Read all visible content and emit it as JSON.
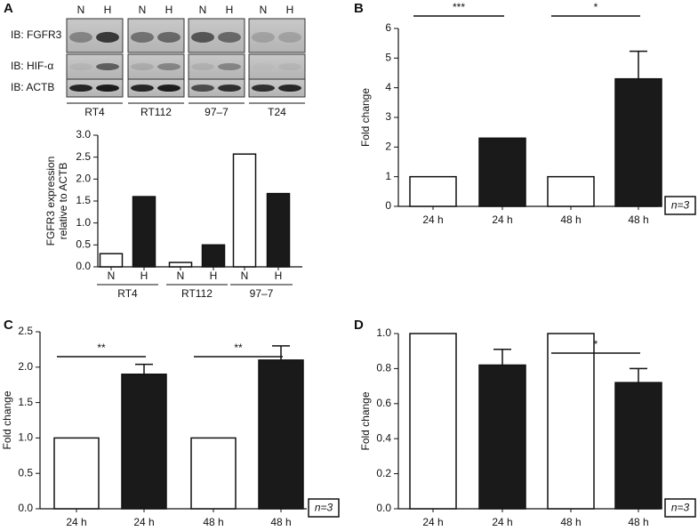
{
  "blot": {
    "panel": "A",
    "lanes": [
      "N",
      "H"
    ],
    "rows": [
      "IB: FGFR3",
      "IB: HIF-α",
      "IB: ACTB"
    ],
    "cell_lines": [
      "RT4",
      "RT112",
      "97–7",
      "T24"
    ]
  },
  "chart_data": [
    {
      "type": "bar",
      "categories": [
        "N",
        "H",
        "N",
        "H",
        "N",
        "H"
      ],
      "groups": [
        "RT4",
        "RT112",
        "97–7"
      ],
      "values": [
        0.3,
        1.6,
        0.1,
        0.5,
        2.57,
        1.67
      ],
      "colors": [
        "#ffffff",
        "#1a1a1a",
        "#ffffff",
        "#1a1a1a",
        "#ffffff",
        "#1a1a1a"
      ],
      "ylabel": [
        "FGFR3 expression",
        "relative to ACTB"
      ],
      "ylim": [
        0,
        3
      ],
      "yticks": [
        {
          "value": 0,
          "label": "0.0"
        },
        {
          "value": 0.5,
          "label": "0.5"
        },
        {
          "value": 1,
          "label": "1.0"
        },
        {
          "value": 1.5,
          "label": "1.5"
        },
        {
          "value": 2,
          "label": "2.0"
        },
        {
          "value": 2.5,
          "label": "2.5"
        },
        {
          "value": 3,
          "label": "3.0"
        }
      ]
    },
    {
      "type": "bar",
      "panel": "B",
      "categories": [
        "24 h",
        "24 h",
        "48 h",
        "48 h"
      ],
      "values": [
        1,
        2.3,
        1,
        4.3
      ],
      "errors": [
        null,
        null,
        null,
        0.93
      ],
      "colors": [
        "#ffffff",
        "#1a1a1a",
        "#ffffff",
        "#1a1a1a"
      ],
      "ylabel": "Fold change",
      "ylim": [
        0,
        6
      ],
      "yticks": [
        0,
        1,
        2,
        3,
        4,
        5,
        6
      ],
      "significance": [
        {
          "label": "***",
          "pair": [
            0,
            1
          ]
        },
        {
          "label": "*",
          "pair": [
            2,
            3
          ]
        }
      ],
      "annotation": "n=3"
    },
    {
      "type": "bar",
      "panel": "C",
      "categories": [
        "24 h",
        "24 h",
        "48 h",
        "48 h"
      ],
      "values": [
        1,
        1.9,
        1,
        2.1
      ],
      "errors": [
        null,
        0.14,
        null,
        0.2
      ],
      "colors": [
        "#ffffff",
        "#1a1a1a",
        "#ffffff",
        "#1a1a1a"
      ],
      "ylabel": "Fold change",
      "ylim": [
        0,
        2.5
      ],
      "yticks": [
        {
          "value": 0,
          "label": "0.0"
        },
        {
          "value": 0.5,
          "label": "0.5"
        },
        {
          "value": 1,
          "label": "1.0"
        },
        {
          "value": 1.5,
          "label": "1.5"
        },
        {
          "value": 2,
          "label": "2.0"
        },
        {
          "value": 2.5,
          "label": "2.5"
        }
      ],
      "significance": [
        {
          "label": "**",
          "pair": [
            0,
            1
          ]
        },
        {
          "label": "**",
          "pair": [
            2,
            3
          ]
        }
      ],
      "annotation": "n=3"
    },
    {
      "type": "bar",
      "panel": "D",
      "categories": [
        "24 h",
        "24 h",
        "48 h",
        "48 h"
      ],
      "values": [
        1,
        0.82,
        1,
        0.72
      ],
      "errors": [
        null,
        0.09,
        null,
        0.08
      ],
      "colors": [
        "#ffffff",
        "#1a1a1a",
        "#ffffff",
        "#1a1a1a"
      ],
      "ylabel": "Fold change",
      "ylim": [
        0,
        1
      ],
      "yticks": [
        {
          "value": 0,
          "label": "0.0"
        },
        {
          "value": 0.2,
          "label": "0.2"
        },
        {
          "value": 0.4,
          "label": "0.4"
        },
        {
          "value": 0.6,
          "label": "0.6"
        },
        {
          "value": 0.8,
          "label": "0.8"
        },
        {
          "value": 1,
          "label": "1.0"
        }
      ],
      "significance": [
        {
          "label": "*",
          "pair": [
            2,
            3
          ]
        }
      ],
      "annotation": "n=3"
    }
  ]
}
